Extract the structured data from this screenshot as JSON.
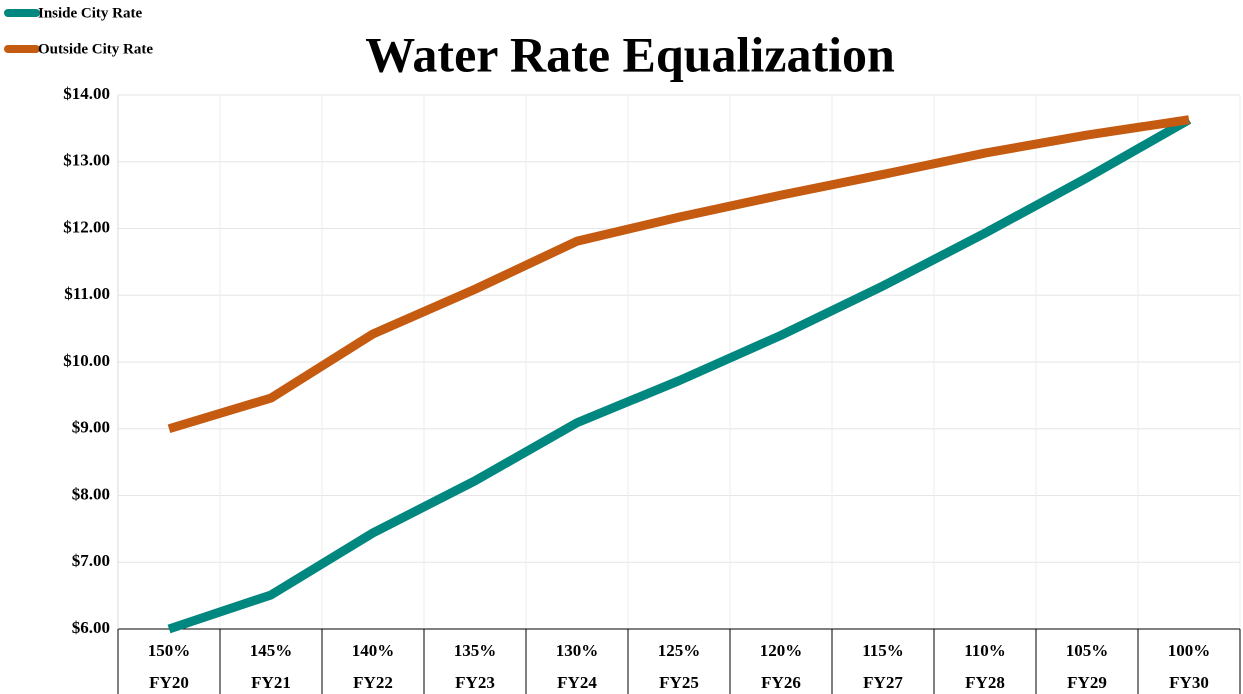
{
  "chart_data": {
    "type": "line",
    "title": "Water Rate Equalization",
    "categories": [
      "FY20",
      "FY21",
      "FY22",
      "FY23",
      "FY24",
      "FY25",
      "FY26",
      "FY27",
      "FY28",
      "FY29",
      "FY30"
    ],
    "percent_labels": [
      "150%",
      "145%",
      "140%",
      "135%",
      "130%",
      "125%",
      "120%",
      "115%",
      "110%",
      "105%",
      "100%"
    ],
    "series": [
      {
        "name": "Inside City Rate",
        "color": "#00877f",
        "values": [
          6.0,
          6.51,
          7.44,
          8.22,
          9.09,
          9.72,
          10.4,
          11.14,
          11.93,
          12.76,
          13.63
        ]
      },
      {
        "name": "Outside City Rate",
        "color": "#c55a11",
        "values": [
          9.0,
          9.46,
          10.42,
          11.09,
          11.81,
          12.17,
          12.5,
          12.81,
          13.13,
          13.4,
          13.63
        ]
      }
    ],
    "ylim": [
      6,
      14
    ],
    "yticks": [
      {
        "value": 6,
        "label": "$6.00"
      },
      {
        "value": 7,
        "label": "$7.00"
      },
      {
        "value": 8,
        "label": "$8.00"
      },
      {
        "value": 9,
        "label": "$9.00"
      },
      {
        "value": 10,
        "label": "$10.00"
      },
      {
        "value": 11,
        "label": "$11.00"
      },
      {
        "value": 12,
        "label": "$12.00"
      },
      {
        "value": 13,
        "label": "$13.00"
      },
      {
        "value": 14,
        "label": "$14.00"
      }
    ],
    "grid": true,
    "legend": "top-left"
  }
}
